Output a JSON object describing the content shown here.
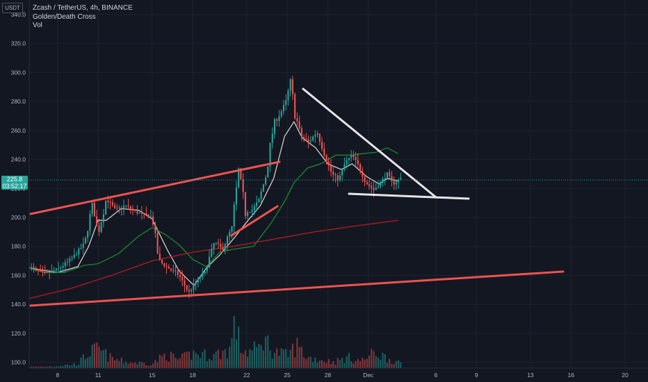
{
  "legend": {
    "symbol_line": "Zcash / TetherUS, 4h, BINANCE",
    "indicator_1": "Golden/Death Cross",
    "indicator_2": "Vol"
  },
  "unit_label": "USDT",
  "last_price": {
    "value": "225.8",
    "countdown": "03:52:17"
  },
  "colors": {
    "background": "#131722",
    "up": "#26a69a",
    "down": "#ef5350",
    "fast_ma": "#d7ccc8",
    "mid_ma": "#1b8a2e",
    "slow_ma": "#b71c1c",
    "trend_red": "#ef5350",
    "trend_white": "#e6e6e6",
    "grid": "#1e2230"
  },
  "chart_data": {
    "type": "candlestick",
    "y_axis": {
      "ticks": [
        "100.0",
        "120.0",
        "140.0",
        "160.0",
        "180.0",
        "200.0",
        "220.0",
        "240.0",
        "260.0",
        "280.0",
        "300.0",
        "320.0",
        "340.0"
      ],
      "range": [
        96,
        350
      ]
    },
    "x_axis": {
      "ticks": [
        {
          "label": "8",
          "day": 8
        },
        {
          "label": "11",
          "day": 11
        },
        {
          "label": "15",
          "day": 15
        },
        {
          "label": "18",
          "day": 18
        },
        {
          "label": "22",
          "day": 22
        },
        {
          "label": "25",
          "day": 25
        },
        {
          "label": "28",
          "day": 28
        },
        {
          "label": "Dec",
          "day": 31
        },
        {
          "label": "6",
          "day": 36
        },
        {
          "label": "9",
          "day": 39
        },
        {
          "label": "13",
          "day": 43
        },
        {
          "label": "16",
          "day": 46
        },
        {
          "label": "20",
          "day": 50
        }
      ],
      "range": [
        5.9,
        51.7
      ]
    },
    "price_anchors": [
      [
        5.9,
        166
      ],
      [
        7.0,
        161
      ],
      [
        8.0,
        164
      ],
      [
        9.0,
        171
      ],
      [
        10.0,
        182
      ],
      [
        10.6,
        210
      ],
      [
        11.0,
        188
      ],
      [
        11.6,
        213
      ],
      [
        12.3,
        205
      ],
      [
        13.0,
        208
      ],
      [
        14.0,
        203
      ],
      [
        15.0,
        200
      ],
      [
        15.5,
        170
      ],
      [
        16.2,
        165
      ],
      [
        17.0,
        160
      ],
      [
        17.7,
        148
      ],
      [
        18.3,
        156
      ],
      [
        18.9,
        162
      ],
      [
        19.6,
        183
      ],
      [
        20.2,
        178
      ],
      [
        20.9,
        193
      ],
      [
        21.4,
        232
      ],
      [
        21.9,
        204
      ],
      [
        22.4,
        205
      ],
      [
        22.9,
        212
      ],
      [
        23.4,
        228
      ],
      [
        24.0,
        264
      ],
      [
        24.5,
        272
      ],
      [
        25.0,
        282
      ],
      [
        25.2,
        296
      ],
      [
        25.5,
        275
      ],
      [
        26.0,
        256
      ],
      [
        26.6,
        252
      ],
      [
        27.2,
        259
      ],
      [
        27.8,
        242
      ],
      [
        28.3,
        230
      ],
      [
        28.8,
        226
      ],
      [
        29.3,
        238
      ],
      [
        29.8,
        243
      ],
      [
        30.3,
        235
      ],
      [
        30.8,
        224
      ],
      [
        31.4,
        219
      ],
      [
        31.9,
        224
      ],
      [
        32.4,
        230
      ],
      [
        32.8,
        223
      ],
      [
        33.4,
        227
      ]
    ],
    "ma_series": [
      {
        "points": [
          [
            5.9,
            165
          ],
          [
            8,
            162
          ],
          [
            9.5,
            166
          ],
          [
            10.3,
            180
          ],
          [
            11,
            198
          ],
          [
            11.6,
            198
          ],
          [
            12.7,
            206
          ],
          [
            14,
            205
          ],
          [
            15,
            199
          ],
          [
            16.1,
            178
          ],
          [
            17,
            163
          ],
          [
            18.1,
            153
          ],
          [
            19,
            165
          ],
          [
            20,
            174
          ],
          [
            21,
            185
          ],
          [
            22.1,
            198
          ],
          [
            23,
            208
          ],
          [
            24,
            227
          ],
          [
            24.8,
            256
          ],
          [
            25.5,
            266
          ],
          [
            26.1,
            255
          ],
          [
            27.1,
            248
          ],
          [
            28,
            237
          ],
          [
            29,
            233
          ],
          [
            29.8,
            237
          ],
          [
            30.9,
            228
          ],
          [
            31.8,
            223
          ],
          [
            32.4,
            227
          ],
          [
            33.2,
            225
          ]
        ]
      },
      {
        "points": [
          [
            5.9,
            165
          ],
          [
            7,
            162
          ],
          [
            8.5,
            162
          ],
          [
            10,
            167
          ],
          [
            11,
            168
          ],
          [
            12.5,
            175
          ],
          [
            14,
            187
          ],
          [
            15,
            193
          ],
          [
            16,
            188
          ],
          [
            17,
            181
          ],
          [
            18,
            171
          ],
          [
            19,
            166
          ],
          [
            20,
            176
          ],
          [
            21,
            178
          ],
          [
            22.5,
            180
          ],
          [
            23.8,
            196
          ],
          [
            24.8,
            211
          ],
          [
            25.5,
            224
          ],
          [
            26.5,
            234
          ],
          [
            27.5,
            237
          ],
          [
            28.6,
            243
          ],
          [
            29.8,
            243
          ],
          [
            30.6,
            244
          ],
          [
            31.6,
            245
          ],
          [
            32.4,
            248
          ],
          [
            33.2,
            244
          ]
        ]
      },
      {
        "points": [
          [
            5.9,
            144
          ],
          [
            9,
            151
          ],
          [
            12,
            160
          ],
          [
            15,
            170
          ],
          [
            18,
            176
          ],
          [
            21,
            180
          ],
          [
            24,
            185
          ],
          [
            27,
            190
          ],
          [
            30,
            194
          ],
          [
            33.2,
            198
          ]
        ]
      }
    ],
    "volume_anchors": [
      [
        5.9,
        1
      ],
      [
        8,
        2
      ],
      [
        9.5,
        4
      ],
      [
        10.3,
        15
      ],
      [
        11,
        18
      ],
      [
        12,
        9
      ],
      [
        13,
        6
      ],
      [
        14,
        5
      ],
      [
        15,
        4
      ],
      [
        16,
        13
      ],
      [
        17,
        8
      ],
      [
        18,
        14
      ],
      [
        19.5,
        12
      ],
      [
        20.8,
        18
      ],
      [
        21.1,
        50
      ],
      [
        21.5,
        20
      ],
      [
        22,
        15
      ],
      [
        22.9,
        19
      ],
      [
        23.2,
        30
      ],
      [
        24,
        16
      ],
      [
        25,
        12
      ],
      [
        25.7,
        22
      ],
      [
        26.5,
        10
      ],
      [
        27.5,
        8
      ],
      [
        28.5,
        6
      ],
      [
        29.5,
        10
      ],
      [
        30.5,
        7
      ],
      [
        31.5,
        15
      ],
      [
        32.5,
        9
      ],
      [
        33.4,
        4
      ]
    ]
  }
}
